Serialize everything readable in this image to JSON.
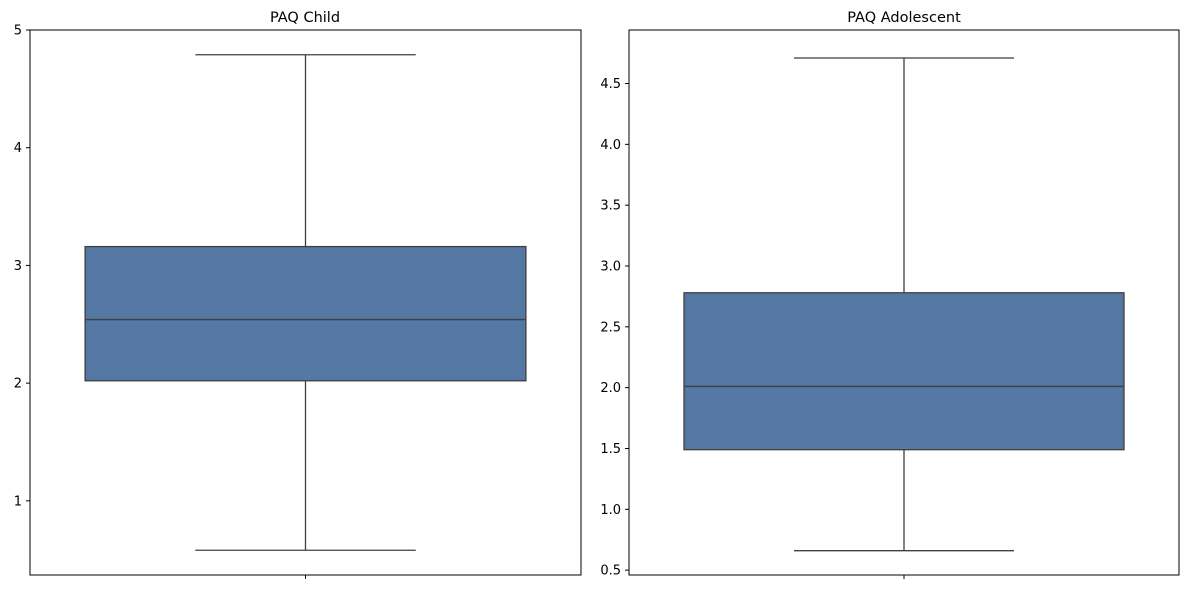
{
  "colors": {
    "box_fill": "#5577a4",
    "line": "#3f3f3f",
    "axis": "#000000",
    "background": "#ffffff"
  },
  "chart_data": [
    {
      "type": "box",
      "title": "PAQ Child",
      "xlabel": "",
      "ylabel": "",
      "ylim": [
        0.37,
        5.0
      ],
      "yticks": [
        1,
        2,
        3,
        4,
        5
      ],
      "ytick_labels": [
        "1",
        "2",
        "3",
        "4",
        "5"
      ],
      "grid": false,
      "box": {
        "whisker_low": 0.58,
        "q1": 2.02,
        "median": 2.54,
        "q3": 3.16,
        "whisker_high": 4.79
      }
    },
    {
      "type": "box",
      "title": "PAQ Adolescent",
      "xlabel": "",
      "ylabel": "",
      "ylim": [
        0.46,
        4.94
      ],
      "yticks": [
        0.5,
        1.0,
        1.5,
        2.0,
        2.5,
        3.0,
        3.5,
        4.0,
        4.5
      ],
      "ytick_labels": [
        "0.5",
        "1.0",
        "1.5",
        "2.0",
        "2.5",
        "3.0",
        "3.5",
        "4.0",
        "4.5"
      ],
      "grid": false,
      "box": {
        "whisker_low": 0.66,
        "q1": 1.49,
        "median": 2.01,
        "q3": 2.78,
        "whisker_high": 4.71
      }
    }
  ]
}
